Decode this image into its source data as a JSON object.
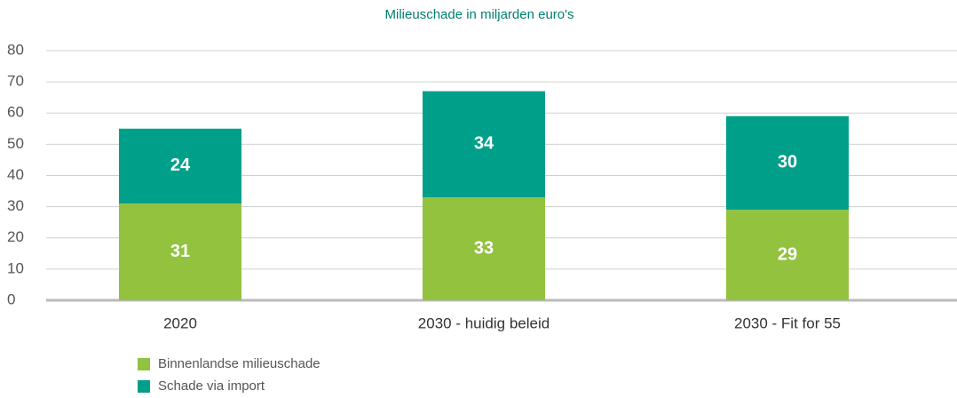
{
  "chart_data": {
    "type": "stacked_bar",
    "title": "Milieuschade in miljarden euro's",
    "categories": [
      "2020",
      "2030 - huidig beleid",
      "2030 - Fit for 55"
    ],
    "series": [
      {
        "name": "Binnenlandse milieuschade",
        "color": "#93c23f",
        "values": [
          31,
          33,
          29
        ]
      },
      {
        "name": "Schade via import",
        "color": "#009f8a",
        "values": [
          24,
          34,
          30
        ]
      }
    ],
    "ylim": [
      0,
      80
    ],
    "yticks": [
      0,
      10,
      20,
      30,
      40,
      50,
      60,
      70,
      80
    ],
    "grid": true,
    "legend": "bottom-left"
  }
}
